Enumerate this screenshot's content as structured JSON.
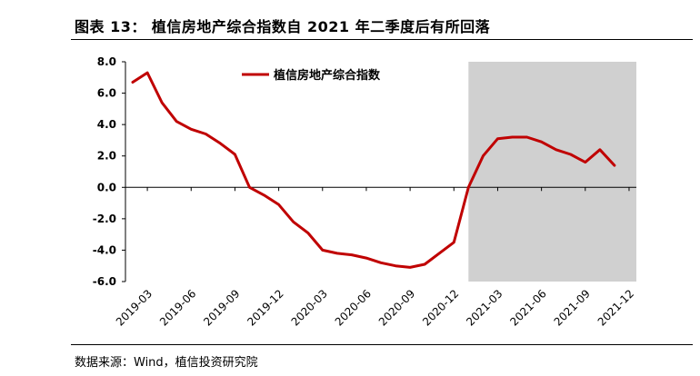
{
  "header": {
    "title": "图表 13： 植信房地产综合指数自 2021 年二季度后有所回落"
  },
  "footer": {
    "source": "数据来源：Wind，植信投资研究院"
  },
  "colors": {
    "line": "#c00000",
    "shade": "#d0d0d0"
  },
  "chart_data": {
    "type": "line",
    "x": [
      "2019-02",
      "2019-03",
      "2019-04",
      "2019-05",
      "2019-06",
      "2019-07",
      "2019-08",
      "2019-09",
      "2019-10",
      "2019-11",
      "2019-12",
      "2020-01",
      "2020-02",
      "2020-03",
      "2020-04",
      "2020-05",
      "2020-06",
      "2020-07",
      "2020-08",
      "2020-09",
      "2020-10",
      "2020-11",
      "2020-12",
      "2021-01",
      "2021-02",
      "2021-03",
      "2021-04",
      "2021-05",
      "2021-06",
      "2021-07",
      "2021-08",
      "2021-09",
      "2021-10",
      "2021-11",
      "2021-12"
    ],
    "x_tick_labels": [
      "2019-03",
      "2019-06",
      "2019-09",
      "2019-12",
      "2020-03",
      "2020-06",
      "2020-09",
      "2020-12",
      "2021-03",
      "2021-06",
      "2021-09",
      "2021-12"
    ],
    "series": [
      {
        "name": "植信房地产综合指数",
        "values": [
          6.7,
          7.3,
          5.4,
          4.2,
          3.7,
          3.4,
          2.8,
          2.1,
          0.0,
          -0.5,
          -1.1,
          -2.2,
          -2.9,
          -4.0,
          -4.2,
          -4.3,
          -4.5,
          -4.8,
          -5.0,
          -5.1,
          -4.9,
          -4.2,
          -3.5,
          0.0,
          2.0,
          3.1,
          3.2,
          3.2,
          2.9,
          2.4,
          2.1,
          1.6,
          2.4,
          1.4,
          null
        ]
      }
    ],
    "y_tick_labels": [
      "8.0",
      "6.0",
      "4.0",
      "2.0",
      "0.0",
      "-2.0",
      "-4.0",
      "-6.0"
    ],
    "ylim": [
      -6.0,
      8.0
    ],
    "shaded_region": [
      "2021-01",
      "2021-12"
    ],
    "legend_position": "top-center",
    "grid": false
  }
}
